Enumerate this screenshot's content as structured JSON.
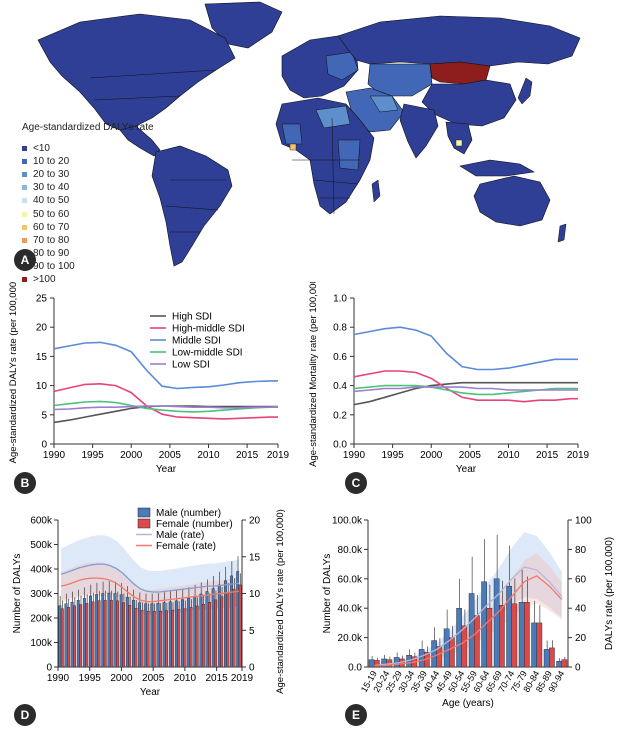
{
  "panels": {
    "A": "A",
    "B": "B",
    "C": "C",
    "D": "D",
    "E": "E"
  },
  "map": {
    "legend_title": "Age-standardized DALYs rate",
    "bins": [
      "<10",
      "10 to 20",
      "20 to 30",
      "30 to 40",
      "40 to 50",
      "50 to 60",
      "60 to 70",
      "70 to 80",
      "80 to 90",
      "90 to 100",
      ">100"
    ],
    "bin_colors": [
      "#2e3f95",
      "#4167b6",
      "#5e8fcc",
      "#8ab8de",
      "#c7e2ef",
      "#f7f3a6",
      "#f6c46f",
      "#f29a5a",
      "#e4683e",
      "#c93b2d",
      "#8e1d1d"
    ]
  },
  "chart_data": [
    {
      "id": "B",
      "type": "line",
      "xlabel": "Year",
      "ylabel": "Age-standardized DALYs rate (per 100,000)",
      "xlim": [
        1990,
        2019
      ],
      "ylim": [
        0,
        25
      ],
      "xticks": [
        1990,
        1995,
        2000,
        2005,
        2010,
        2015,
        2019
      ],
      "yticks": [
        0,
        5,
        10,
        15,
        20,
        25
      ],
      "x": [
        1990,
        1992,
        1994,
        1996,
        1998,
        2000,
        2002,
        2004,
        2006,
        2008,
        2010,
        2012,
        2014,
        2016,
        2018,
        2019
      ],
      "series": [
        {
          "name": "High SDI",
          "color": "#555555",
          "values": [
            3.7,
            4.1,
            4.6,
            5.1,
            5.6,
            6.1,
            6.4,
            6.5,
            6.5,
            6.5,
            6.4,
            6.4,
            6.4,
            6.4,
            6.4,
            6.4
          ]
        },
        {
          "name": "High-middle SDI",
          "color": "#e8417c",
          "values": [
            9.0,
            9.6,
            10.2,
            10.3,
            10.0,
            8.8,
            6.5,
            5.1,
            4.6,
            4.5,
            4.4,
            4.3,
            4.4,
            4.5,
            4.6,
            4.6
          ]
        },
        {
          "name": "Middle SDI",
          "color": "#5b8ad8",
          "values": [
            16.3,
            16.8,
            17.3,
            17.4,
            16.9,
            15.8,
            12.6,
            9.9,
            9.5,
            9.7,
            9.8,
            10.1,
            10.5,
            10.7,
            10.8,
            10.8
          ]
        },
        {
          "name": "Low-middle SDI",
          "color": "#4cc17a",
          "values": [
            6.6,
            6.9,
            7.2,
            7.3,
            7.1,
            6.6,
            6.1,
            5.8,
            5.6,
            5.5,
            5.6,
            5.8,
            6.0,
            6.2,
            6.3,
            6.4
          ]
        },
        {
          "name": "Low SDI",
          "color": "#9b7fcf",
          "values": [
            5.9,
            6.0,
            6.2,
            6.3,
            6.3,
            6.4,
            6.5,
            6.5,
            6.4,
            6.3,
            6.3,
            6.2,
            6.2,
            6.3,
            6.3,
            6.3
          ]
        }
      ]
    },
    {
      "id": "C",
      "type": "line",
      "xlabel": "Year",
      "ylabel": "Age-standardized Mortality rate (per 100,000)",
      "xlim": [
        1990,
        2019
      ],
      "ylim": [
        0.0,
        1.0
      ],
      "xticks": [
        1990,
        1995,
        2000,
        2005,
        2010,
        2015,
        2019
      ],
      "yticks": [
        "0.0",
        "0.2",
        "0.4",
        "0.6",
        "0.8",
        "1.0"
      ],
      "x": [
        1990,
        1992,
        1994,
        1996,
        1998,
        2000,
        2002,
        2004,
        2006,
        2008,
        2010,
        2012,
        2014,
        2016,
        2018,
        2019
      ],
      "series": [
        {
          "name": "High SDI",
          "color": "#555555",
          "values": [
            0.27,
            0.29,
            0.32,
            0.35,
            0.38,
            0.4,
            0.41,
            0.42,
            0.42,
            0.42,
            0.42,
            0.42,
            0.42,
            0.42,
            0.42,
            0.42
          ]
        },
        {
          "name": "High-middle SDI",
          "color": "#e8417c",
          "values": [
            0.46,
            0.48,
            0.5,
            0.5,
            0.49,
            0.45,
            0.38,
            0.32,
            0.3,
            0.3,
            0.3,
            0.29,
            0.3,
            0.3,
            0.31,
            0.31
          ]
        },
        {
          "name": "Middle SDI",
          "color": "#5b8ad8",
          "values": [
            0.75,
            0.77,
            0.79,
            0.8,
            0.78,
            0.74,
            0.62,
            0.53,
            0.51,
            0.51,
            0.52,
            0.54,
            0.56,
            0.58,
            0.58,
            0.58
          ]
        },
        {
          "name": "Low-middle SDI",
          "color": "#4cc17a",
          "values": [
            0.38,
            0.39,
            0.4,
            0.4,
            0.4,
            0.39,
            0.37,
            0.35,
            0.34,
            0.34,
            0.35,
            0.36,
            0.37,
            0.38,
            0.38,
            0.38
          ]
        },
        {
          "name": "Low SDI",
          "color": "#9b7fcf",
          "values": [
            0.36,
            0.37,
            0.38,
            0.38,
            0.39,
            0.39,
            0.39,
            0.39,
            0.38,
            0.38,
            0.37,
            0.37,
            0.37,
            0.37,
            0.37,
            0.37
          ]
        }
      ]
    },
    {
      "id": "D",
      "type": "bar",
      "xlabel": "Year",
      "ylabel": "Number of DALYs",
      "y2label": "Age-standardized DALYs rate (per 100,000)",
      "legend": [
        "Male (number)",
        "Female (number)",
        "Male (rate)",
        "Female (rate)"
      ],
      "xlim": [
        1990,
        2019
      ],
      "ylim": [
        0,
        600000
      ],
      "y2lim": [
        0,
        20
      ],
      "xticks": [
        1990,
        1995,
        2000,
        2005,
        2010,
        2015,
        2019
      ],
      "yticks": [
        "0",
        "100k",
        "200k",
        "300k",
        "400k",
        "500k",
        "600k"
      ],
      "y2ticks": [
        0,
        5,
        10,
        15,
        20
      ],
      "categories": [
        1990,
        1991,
        1992,
        1993,
        1994,
        1995,
        1996,
        1997,
        1998,
        1999,
        2000,
        2001,
        2002,
        2003,
        2004,
        2005,
        2006,
        2007,
        2008,
        2009,
        2010,
        2011,
        2012,
        2013,
        2014,
        2015,
        2016,
        2017,
        2018,
        2019
      ],
      "series": [
        {
          "name": "Male (number)",
          "values": [
            250000,
            258000,
            265000,
            272000,
            280000,
            290000,
            296000,
            300000,
            302000,
            300000,
            295000,
            285000,
            272000,
            262000,
            258000,
            258000,
            260000,
            263000,
            266000,
            270000,
            275000,
            281000,
            289000,
            298000,
            308000,
            320000,
            335000,
            352000,
            372000,
            390000
          ]
        },
        {
          "name": "Female (number)",
          "values": [
            238000,
            244000,
            250000,
            255000,
            260000,
            266000,
            271000,
            273000,
            273000,
            270000,
            263000,
            252000,
            240000,
            232000,
            228000,
            227000,
            228000,
            230000,
            232000,
            235000,
            238000,
            243000,
            249000,
            256000,
            264000,
            274000,
            287000,
            301000,
            318000,
            335000
          ]
        },
        {
          "name": "Male (rate)",
          "values": [
            12.6,
            12.9,
            13.2,
            13.5,
            13.7,
            13.9,
            14.0,
            14.0,
            13.8,
            13.4,
            12.8,
            12.0,
            11.2,
            10.6,
            10.3,
            10.2,
            10.2,
            10.3,
            10.4,
            10.5,
            10.6,
            10.7,
            10.8,
            10.9,
            11.0,
            11.0,
            11.1,
            11.2,
            11.3,
            11.4
          ]
        },
        {
          "name": "Female (rate)",
          "values": [
            11.0,
            11.2,
            11.5,
            11.8,
            12.0,
            12.1,
            12.1,
            12.0,
            11.8,
            11.4,
            10.8,
            10.1,
            9.5,
            9.1,
            8.9,
            8.9,
            9.0,
            9.1,
            9.2,
            9.3,
            9.4,
            9.5,
            9.6,
            9.7,
            9.8,
            9.9,
            10.0,
            10.1,
            10.2,
            10.3
          ]
        }
      ]
    },
    {
      "id": "E",
      "type": "bar",
      "xlabel": "Age (years)",
      "ylabel": "Number of DALYs",
      "y2label": "DALYs rate (per 100,000)",
      "ylim": [
        0,
        100000
      ],
      "y2lim": [
        0,
        100
      ],
      "yticks": [
        "0.0",
        "20.0k",
        "40.0k",
        "60.0k",
        "80.0k",
        "100.0k"
      ],
      "y2ticks": [
        0,
        20,
        40,
        60,
        80,
        100
      ],
      "categories": [
        "15-19",
        "20-24",
        "25-29",
        "30-34",
        "35-39",
        "40-44",
        "45-49",
        "50-54",
        "55-59",
        "60-64",
        "65-69",
        "70-74",
        "75-79",
        "80-84",
        "85-89",
        "90-94"
      ],
      "series": [
        {
          "name": "Male (number)",
          "values": [
            5000,
            5500,
            6500,
            8000,
            12000,
            18000,
            26000,
            40000,
            50000,
            58000,
            60000,
            55000,
            44000,
            30000,
            12000,
            4000
          ]
        },
        {
          "name": "Female (number)",
          "values": [
            4500,
            5000,
            5500,
            7000,
            10000,
            14000,
            20000,
            28000,
            35000,
            40000,
            42000,
            43000,
            44000,
            30000,
            13000,
            5000
          ]
        },
        {
          "name": "Male (rate)",
          "values": [
            1,
            2,
            3,
            5,
            8,
            12,
            18,
            25,
            33,
            42,
            50,
            60,
            68,
            66,
            58,
            48
          ]
        },
        {
          "name": "Female (rate)",
          "values": [
            1,
            1,
            2,
            3,
            5,
            8,
            12,
            16,
            22,
            30,
            38,
            48,
            58,
            62,
            55,
            46
          ]
        }
      ]
    }
  ]
}
